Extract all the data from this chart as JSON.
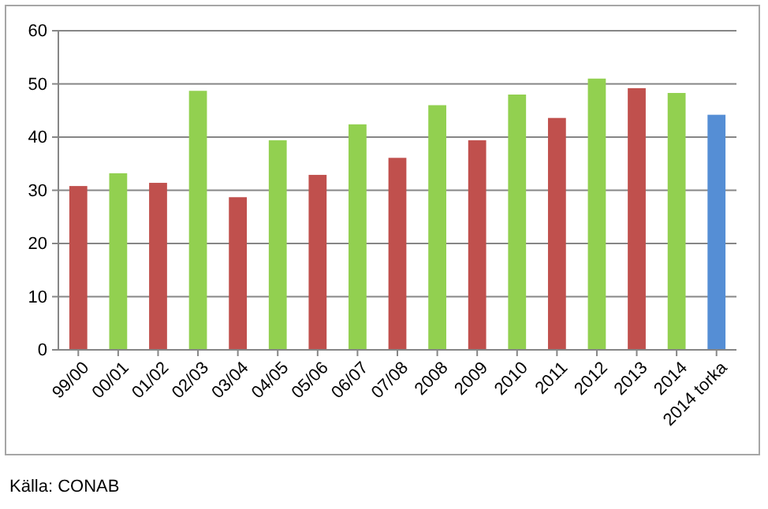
{
  "chart_data": {
    "type": "bar",
    "categories": [
      "99/00",
      "00/01",
      "01/02",
      "02/03",
      "03/04",
      "04/05",
      "05/06",
      "06/07",
      "07/08",
      "2008",
      "2009",
      "2010",
      "2011",
      "2012",
      "2013",
      "2014",
      "2014 torka"
    ],
    "values": [
      30.8,
      33.2,
      31.4,
      48.7,
      28.7,
      39.4,
      32.9,
      42.4,
      36.1,
      46,
      39.4,
      48,
      43.6,
      51,
      49.2,
      48.3,
      44.2
    ],
    "colors": [
      "#c0504d",
      "#92d050",
      "#c0504d",
      "#92d050",
      "#c0504d",
      "#92d050",
      "#c0504d",
      "#92d050",
      "#c0504d",
      "#92d050",
      "#c0504d",
      "#92d050",
      "#c0504d",
      "#92d050",
      "#c0504d",
      "#92d050",
      "#558ed5"
    ],
    "ylim": [
      0,
      60
    ],
    "yticks": [
      0,
      10,
      20,
      30,
      40,
      50,
      60
    ],
    "grid": "y",
    "annotations": [
      "Källa: CONAB"
    ]
  }
}
